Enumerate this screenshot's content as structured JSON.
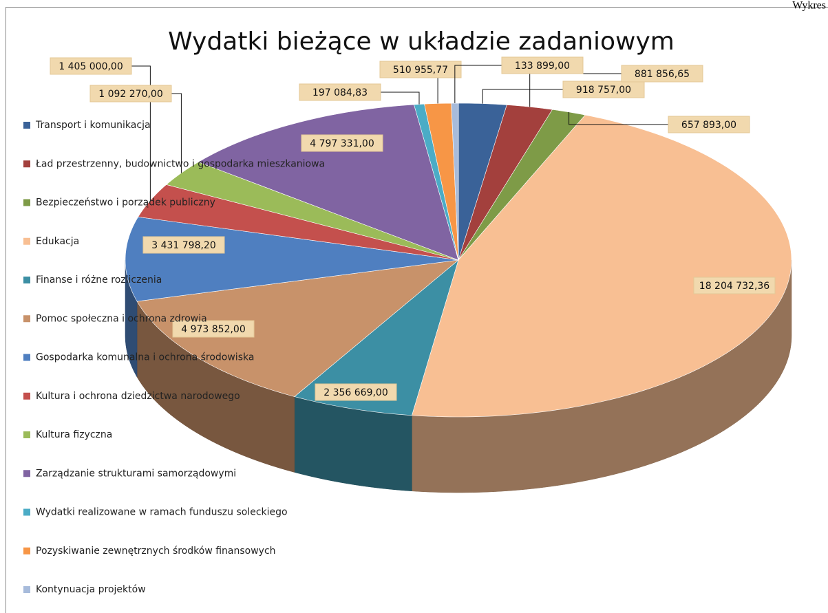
{
  "header": {
    "text": "Wykres"
  },
  "chart_data": {
    "type": "pie3d",
    "title": "Wydatki bieżące w układzie zadaniowym",
    "categories": [
      "Transport i komunikacja",
      "Ład przestrzenny, budownictwo i gospodarka mieszkaniowa",
      "Bezpieczeństwo i porządek publiczny",
      "Edukacja",
      "Finanse i różne rozliczenia",
      "Pomoc społeczna i ochrona zdrowia",
      "Gospodarka komunalna i ochrona środowiska",
      "Kultura i ochrona dziedzictwa narodowego",
      "Kultura fizyczna",
      "Zarządzanie strukturami samorządowymi",
      "Wydatki realizowane w ramach funduszu soleckiego",
      "Pozyskiwanie zewnętrznych środków finansowych",
      "Kontynuacja projektów"
    ],
    "values": [
      918757,
      881856.65,
      657893,
      18204732.36,
      2356669,
      4973852,
      3431798.2,
      1405000,
      1092270,
      4797331,
      197084.83,
      510955.77,
      133899
    ],
    "value_labels": [
      "918 757,00",
      "881 856,65",
      "657 893,00",
      "18 204 732,36",
      "2 356 669,00",
      "4 973 852,00",
      "3 431 798,20",
      "1 405 000,00",
      "1 092 270,00",
      "4 797 331,00",
      "197 084,83",
      "510 955,77",
      "133 899,00"
    ],
    "colors": [
      "#3a6298",
      "#a3403d",
      "#7e9b47",
      "#f8bf93",
      "#3c8fa4",
      "#c8926a",
      "#4f7fc0",
      "#c4504d",
      "#9bbb59",
      "#8064a2",
      "#4bacc6",
      "#f79646",
      "#a7bbdb"
    ],
    "legend": "left"
  }
}
